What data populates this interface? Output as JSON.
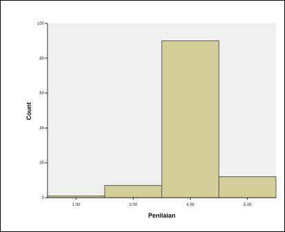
{
  "chart_data": {
    "type": "bar",
    "categories": [
      "1.00",
      "3.00",
      "4.00",
      "5.00"
    ],
    "values": [
      1,
      7,
      90,
      12
    ],
    "xlabel": "Penilaian",
    "ylabel": "Count",
    "ylim": [
      0,
      100
    ],
    "yticks": [
      0,
      20,
      40,
      60,
      80,
      100
    ],
    "grid": false,
    "legend": "none",
    "colors": {
      "plot_background": "#efefef",
      "bar_fill": "#d3ce9a",
      "bar_stroke": "#3a3a3a",
      "axis": "#000000"
    }
  }
}
